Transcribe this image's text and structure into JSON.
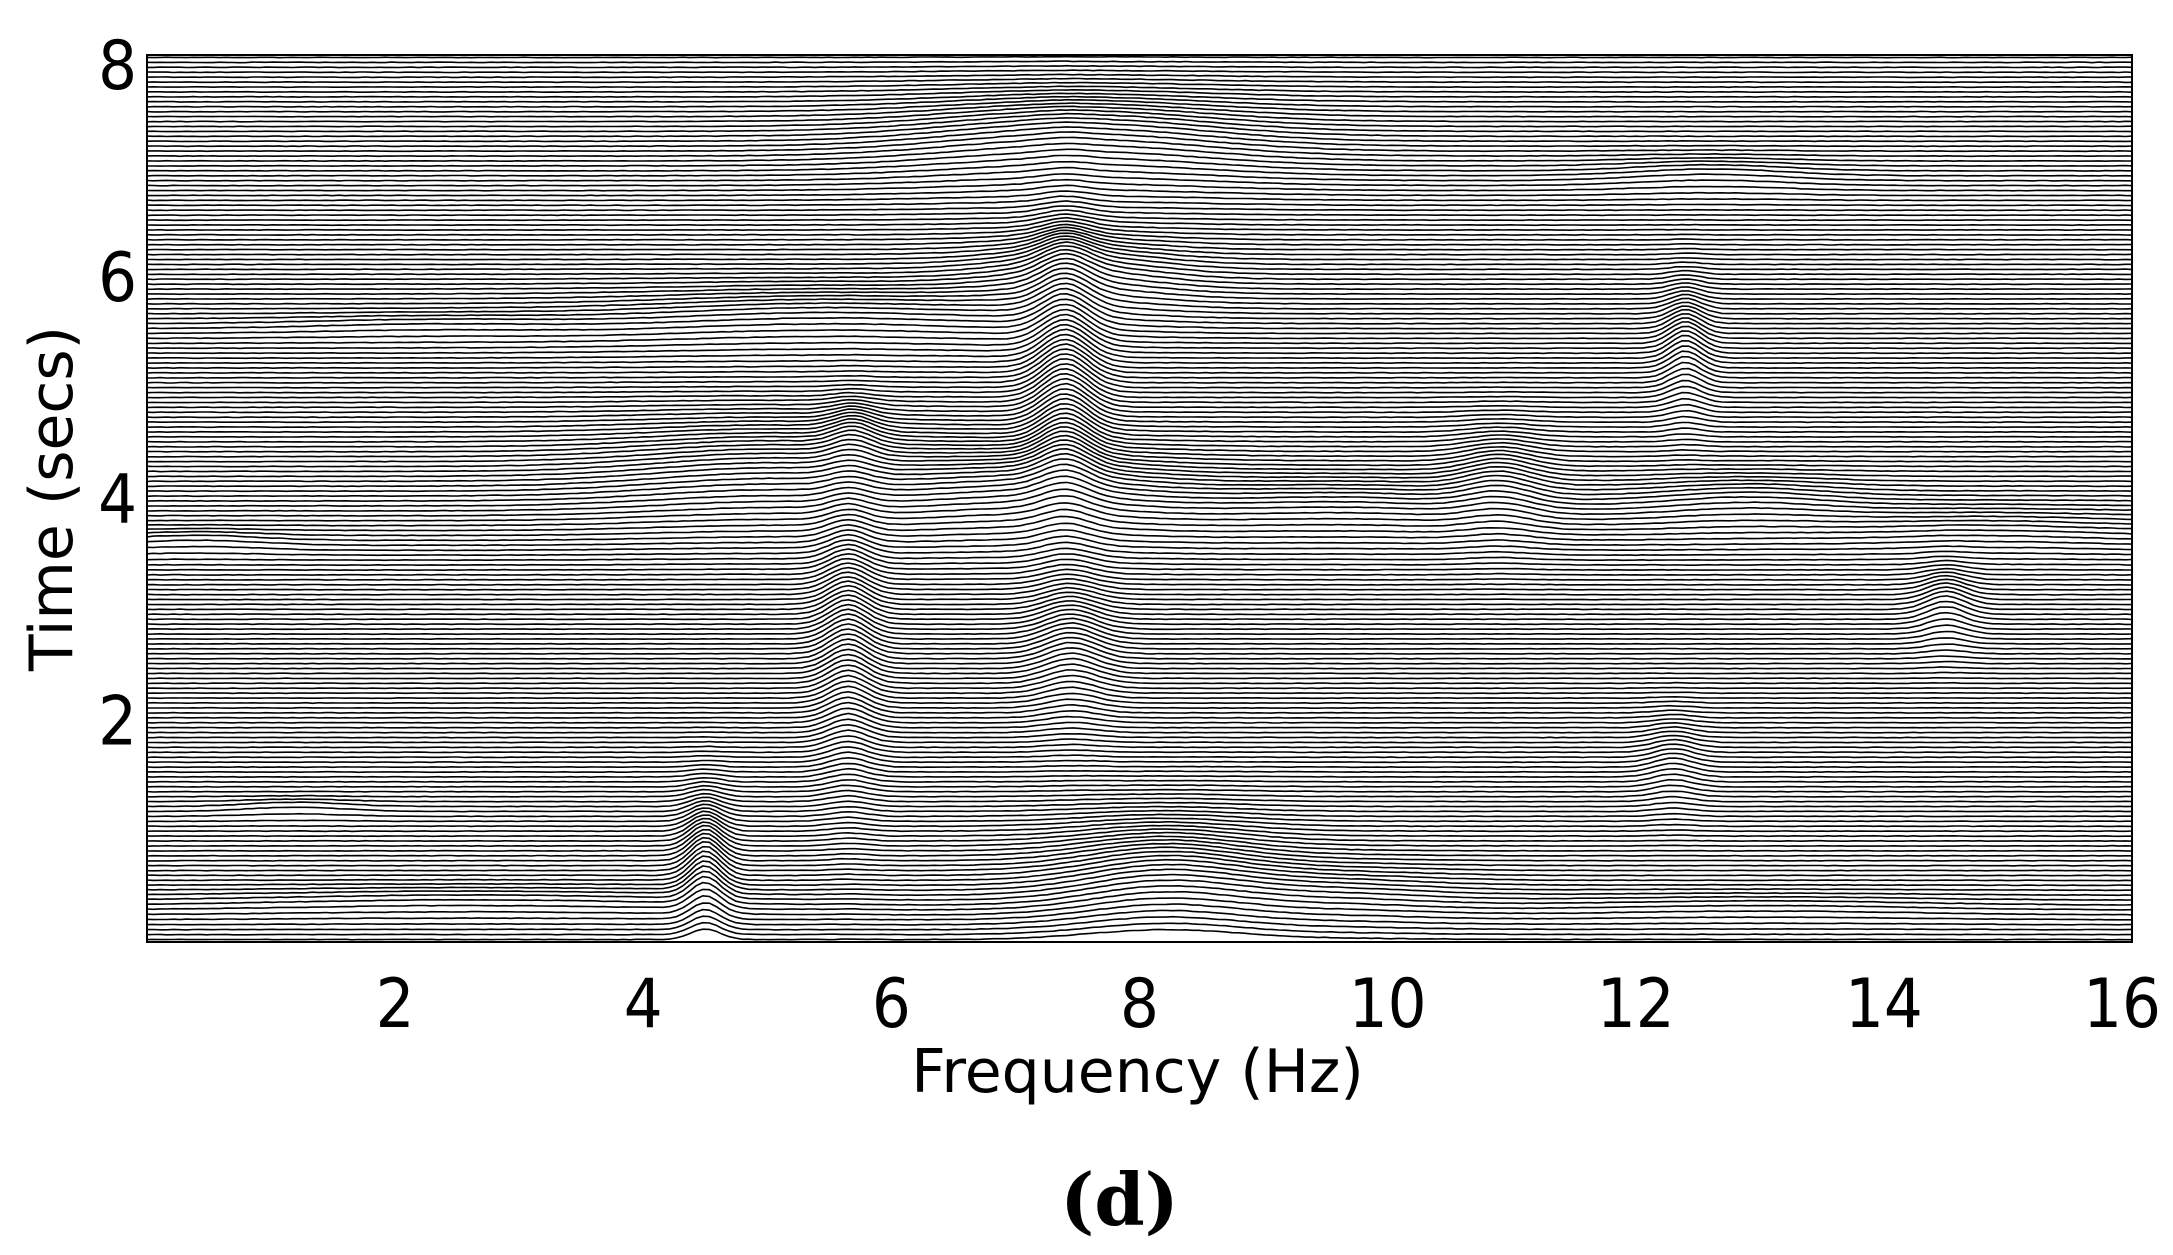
{
  "chart_data": {
    "type": "line",
    "xlabel": "Frequency (Hz)",
    "ylabel": "Time (secs)",
    "panel_label": "(d)",
    "xlim": [
      0,
      16
    ],
    "ylim": [
      0,
      8
    ],
    "x_ticks": [
      2,
      4,
      6,
      8,
      10,
      12,
      14,
      16
    ],
    "y_ticks": [
      2,
      4,
      6,
      8
    ],
    "trace_count": 180,
    "grid": false,
    "style": "wiggle traces with white-filled peaks",
    "line_color": "#000000",
    "fill_color": "#ffffff",
    "peaks": [
      {
        "freq": 0.4,
        "time": 3.6,
        "amp": 0.12,
        "width": 0.5,
        "spread": 0.08
      },
      {
        "freq": 1.2,
        "time": 1.2,
        "amp": 0.1,
        "width": 0.4,
        "spread": 0.06
      },
      {
        "freq": 2.3,
        "time": 5.55,
        "amp": 0.1,
        "width": 0.9,
        "spread": 0.08
      },
      {
        "freq": 2.6,
        "time": 0.35,
        "amp": 0.12,
        "width": 1.4,
        "spread": 0.1
      },
      {
        "freq": 4.5,
        "time": 0.6,
        "amp": 0.55,
        "width": 0.12,
        "spread": 0.45
      },
      {
        "freq": 5.0,
        "time": 4.2,
        "amp": 0.3,
        "width": 0.9,
        "spread": 0.35
      },
      {
        "freq": 5.5,
        "time": 5.6,
        "amp": 0.25,
        "width": 1.2,
        "spread": 0.2
      },
      {
        "freq": 5.65,
        "time": 2.7,
        "amp": 0.45,
        "width": 0.15,
        "spread": 0.9
      },
      {
        "freq": 5.7,
        "time": 4.5,
        "amp": 0.22,
        "width": 0.15,
        "spread": 0.25
      },
      {
        "freq": 7.2,
        "time": 4.0,
        "amp": 0.35,
        "width": 0.8,
        "spread": 0.3
      },
      {
        "freq": 7.4,
        "time": 5.0,
        "amp": 0.65,
        "width": 0.18,
        "spread": 0.9
      },
      {
        "freq": 7.45,
        "time": 2.6,
        "amp": 0.35,
        "width": 0.2,
        "spread": 0.45
      },
      {
        "freq": 7.5,
        "time": 7.2,
        "amp": 0.4,
        "width": 1.0,
        "spread": 0.3
      },
      {
        "freq": 7.5,
        "time": 6.0,
        "amp": 0.3,
        "width": 0.6,
        "spread": 0.25
      },
      {
        "freq": 8.2,
        "time": 0.5,
        "amp": 0.45,
        "width": 0.6,
        "spread": 0.4
      },
      {
        "freq": 9.6,
        "time": 0.4,
        "amp": 0.15,
        "width": 0.7,
        "spread": 0.2
      },
      {
        "freq": 9.6,
        "time": 3.9,
        "amp": 0.2,
        "width": 0.9,
        "spread": 0.2
      },
      {
        "freq": 10.9,
        "time": 4.1,
        "amp": 0.3,
        "width": 0.25,
        "spread": 0.35
      },
      {
        "freq": 12.4,
        "time": 5.3,
        "amp": 0.4,
        "width": 0.12,
        "spread": 0.4
      },
      {
        "freq": 12.3,
        "time": 1.6,
        "amp": 0.2,
        "width": 0.15,
        "spread": 0.3
      },
      {
        "freq": 12.6,
        "time": 6.9,
        "amp": 0.15,
        "width": 0.6,
        "spread": 0.12
      },
      {
        "freq": 12.9,
        "time": 3.95,
        "amp": 0.2,
        "width": 0.6,
        "spread": 0.18
      },
      {
        "freq": 13.0,
        "time": 0.3,
        "amp": 0.1,
        "width": 1.2,
        "spread": 0.1
      },
      {
        "freq": 14.5,
        "time": 3.0,
        "amp": 0.3,
        "width": 0.15,
        "spread": 0.25
      },
      {
        "freq": 14.8,
        "time": 3.7,
        "amp": 0.12,
        "width": 0.8,
        "spread": 0.15
      }
    ]
  }
}
